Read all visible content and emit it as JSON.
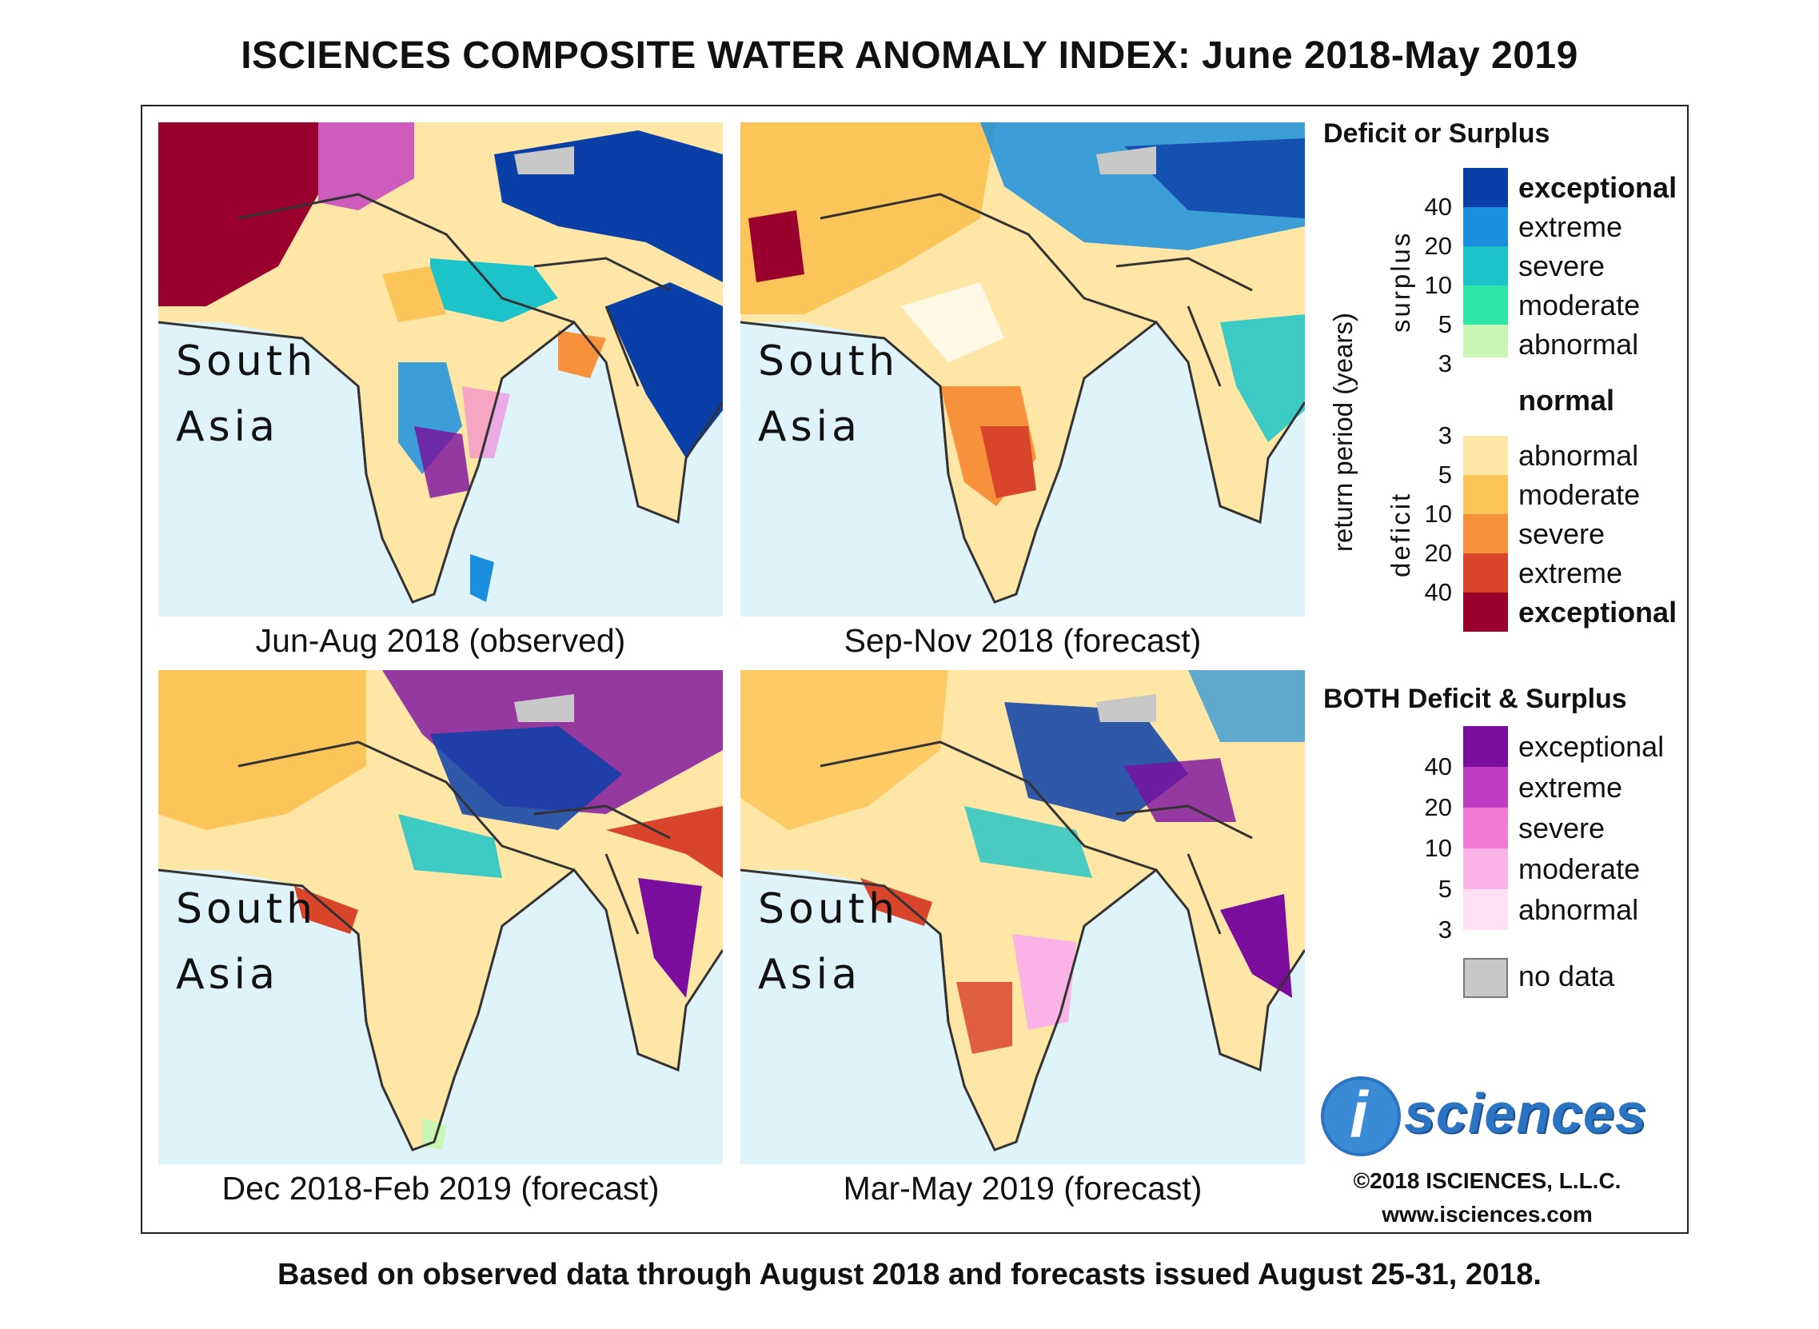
{
  "title": "ISCIENCES COMPOSITE WATER ANOMALY INDEX: June 2018-May 2019",
  "panels": [
    {
      "region": "South\nAsia",
      "caption": "Jun-Aug 2018 (observed)"
    },
    {
      "region": "South\nAsia",
      "caption": "Sep-Nov 2018 (forecast)"
    },
    {
      "region": "South\nAsia",
      "caption": "Dec 2018-Feb 2019 (forecast)"
    },
    {
      "region": "South\nAsia",
      "caption": "Mar-May 2019 (forecast)"
    }
  ],
  "legend": {
    "deficit_surplus_heading": "Deficit or Surplus",
    "axis_label": "return period (years)",
    "surplus_label": "surplus",
    "deficit_label": "deficit",
    "surplus_classes": [
      {
        "label": "exceptional",
        "color": "#0b3fa8"
      },
      {
        "label": "extreme",
        "color": "#1b8fde"
      },
      {
        "label": "severe",
        "color": "#1cc4c9"
      },
      {
        "label": "moderate",
        "color": "#2ee6a6"
      },
      {
        "label": "abnormal",
        "color": "#c9f7b3"
      }
    ],
    "surplus_ticks": [
      "40",
      "20",
      "10",
      "5",
      "3"
    ],
    "normal": {
      "label": "normal",
      "color": "#ffffff"
    },
    "deficit_classes": [
      {
        "label": "abnormal",
        "color": "#fde6a6"
      },
      {
        "label": "moderate",
        "color": "#fcc55a"
      },
      {
        "label": "severe",
        "color": "#f7913b"
      },
      {
        "label": "extreme",
        "color": "#d8452b"
      },
      {
        "label": "exceptional",
        "color": "#99002d"
      }
    ],
    "deficit_ticks": [
      "3",
      "5",
      "10",
      "20",
      "40"
    ],
    "both_heading": "BOTH Deficit & Surplus",
    "both_classes": [
      {
        "label": "exceptional",
        "color": "#7a0c9e"
      },
      {
        "label": "extreme",
        "color": "#c03ac2"
      },
      {
        "label": "severe",
        "color": "#f27ad6"
      },
      {
        "label": "moderate",
        "color": "#f9b3e6"
      },
      {
        "label": "abnormal",
        "color": "#fde1f2"
      }
    ],
    "both_ticks": [
      "40",
      "20",
      "10",
      "5",
      "3"
    ],
    "no_data": {
      "label": "no data",
      "color": "#c8c8c8"
    }
  },
  "logo": {
    "letter": "i",
    "word": "sciences"
  },
  "copyright": "©2018 ISCIENCES, L.L.C.",
  "website": "www.isciences.com",
  "footer": "Based on observed data through August 2018 and forecasts issued August 25-31, 2018.",
  "colors": {
    "ocean": "#dff3fb",
    "border": "#333333"
  }
}
